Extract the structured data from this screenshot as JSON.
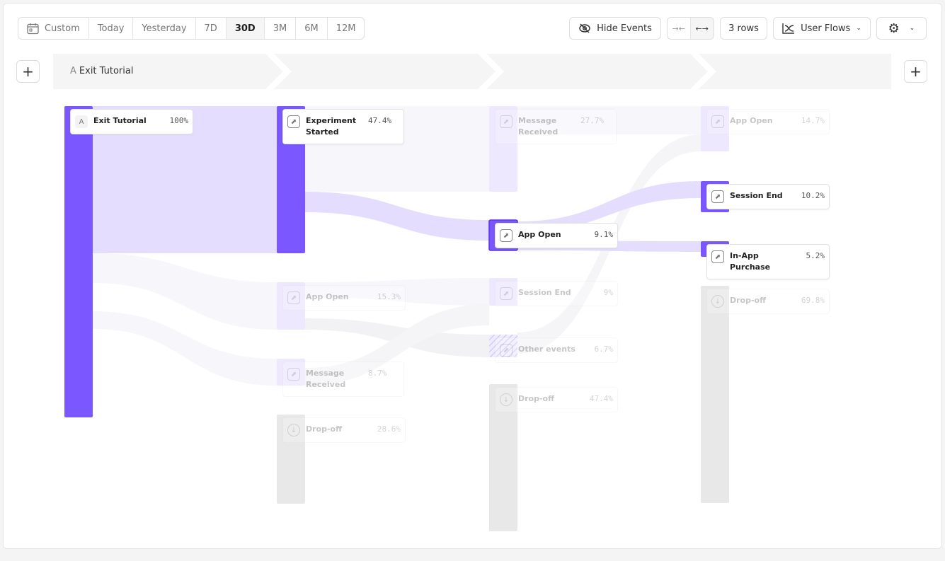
{
  "toolbar": {
    "date_ranges": [
      {
        "label": "Custom",
        "icon": "calendar-icon"
      },
      {
        "label": "Today"
      },
      {
        "label": "Yesterday"
      },
      {
        "label": "7D"
      },
      {
        "label": "30D",
        "active": true
      },
      {
        "label": "3M"
      },
      {
        "label": "6M"
      },
      {
        "label": "12M"
      }
    ],
    "hide_events": "Hide Events",
    "rows": "3 rows",
    "view": "User Flows",
    "icons": {
      "hide": "eye-slash-icon",
      "collapse": "collapse-arrows-icon",
      "expand": "expand-arrows-icon",
      "view": "line-chart-icon",
      "settings": "gear-icon"
    }
  },
  "steps": {
    "first": {
      "letter": "A",
      "label": "Exit Tutorial"
    }
  },
  "colors": {
    "accent": "#7b57ff",
    "link": "#e4ddfd",
    "faded": "#ede8fe",
    "dropoff": "#e8e8e8"
  },
  "columns": [
    [
      {
        "label": "Exit Tutorial",
        "pct": "100%",
        "letter": "A",
        "active": true
      }
    ],
    [
      {
        "label": "Experiment Started",
        "pct": "47.4%",
        "active": true
      },
      {
        "label": "App Open",
        "pct": "15.3%"
      },
      {
        "label": "Message Received",
        "pct": "8.7%"
      },
      {
        "label": "Drop-off",
        "pct": "28.6%",
        "dropoff": true
      }
    ],
    [
      {
        "label": "Message Received",
        "pct": "27.7%"
      },
      {
        "label": "App Open",
        "pct": "9.1%",
        "active": true
      },
      {
        "label": "Session End",
        "pct": "9%"
      },
      {
        "label": "Other events",
        "pct": "6.7%"
      },
      {
        "label": "Drop-off",
        "pct": "47.4%",
        "dropoff": true
      }
    ],
    [
      {
        "label": "App Open",
        "pct": "14.7%"
      },
      {
        "label": "Session End",
        "pct": "10.2%",
        "active": true
      },
      {
        "label": "In-App Purchase",
        "pct": "5.2%",
        "active": true
      },
      {
        "label": "Drop-off",
        "pct": "69.8%",
        "dropoff": true
      }
    ]
  ]
}
